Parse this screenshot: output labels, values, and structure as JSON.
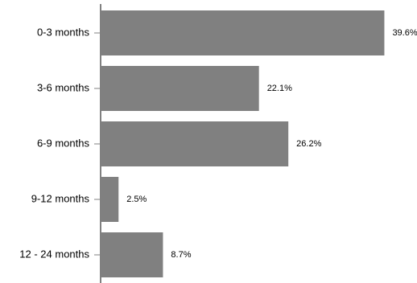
{
  "chart_data": {
    "type": "bar",
    "orientation": "horizontal",
    "categories": [
      "0-3 months",
      "3-6 months",
      "6-9 months",
      "9-12 months",
      "12 - 24 months"
    ],
    "values": [
      39.6,
      22.1,
      26.2,
      2.5,
      8.7
    ],
    "value_labels": [
      "39.6%",
      "22.1%",
      "26.2%",
      "2.5%",
      "8.7%"
    ],
    "value_unit": "%",
    "bar_color": "#808080",
    "axis_color": "#808080",
    "grid": false,
    "legend": "none"
  }
}
